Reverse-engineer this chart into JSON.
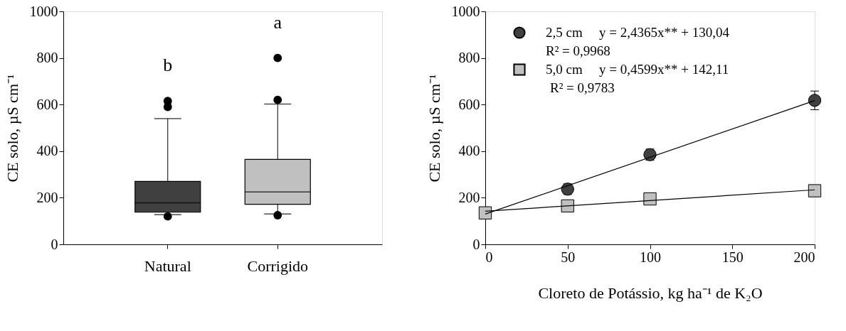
{
  "chart_data": [
    {
      "type": "box",
      "categories": [
        "Natural",
        "Corrigido"
      ],
      "colors": [
        "#404040",
        "#c0c0c0"
      ],
      "ylabel": "CE solo, µS cm⁻¹",
      "ylim": [
        0,
        1000
      ],
      "yticks": [
        0,
        200,
        400,
        600,
        800,
        1000
      ],
      "grid": false,
      "boxes": [
        {
          "low": 127,
          "q1": 138,
          "median": 178,
          "q3": 270,
          "high": 540,
          "outliers": [
            120,
            590,
            615
          ]
        },
        {
          "low": 130,
          "q1": 172,
          "median": 225,
          "q3": 365,
          "high": 602,
          "outliers": [
            125,
            620,
            800
          ]
        }
      ],
      "annotations": [
        "b",
        "a"
      ]
    },
    {
      "type": "scatter",
      "xlabel": "Cloreto de Potássio, kg ha⁻¹ de K₂O",
      "ylabel": "CE solo, µS cm⁻¹",
      "xlim": [
        0,
        200
      ],
      "xticks": [
        0,
        50,
        100,
        150,
        200
      ],
      "ylim": [
        0,
        1000
      ],
      "yticks": [
        0,
        200,
        400,
        600,
        800,
        1000
      ],
      "grid": false,
      "legend": "top left",
      "series": [
        {
          "name": "2,5 cm",
          "color": "#404040",
          "marker": "circle",
          "x": [
            50,
            100,
            200
          ],
          "values": [
            237,
            385,
            618
          ],
          "errors": [
            23,
            24,
            40
          ]
        },
        {
          "name": "5,0 cm",
          "color": "#c0c0c0",
          "marker": "square",
          "x": [
            0,
            50,
            100,
            200
          ],
          "values": [
            135,
            165,
            195,
            230
          ]
        },
        {
          "type": "line",
          "color": "#000000",
          "x": [
            0,
            200
          ],
          "values": [
            130,
            617
          ]
        },
        {
          "type": "line",
          "color": "#000000",
          "x": [
            0,
            200
          ],
          "values": [
            142,
            234
          ]
        }
      ],
      "annotations": [
        "y = 2,4365x** + 130,04",
        "R² = 0,9968",
        "y = 0,4599x** + 142,11",
        "R² = 0,9783"
      ]
    }
  ]
}
